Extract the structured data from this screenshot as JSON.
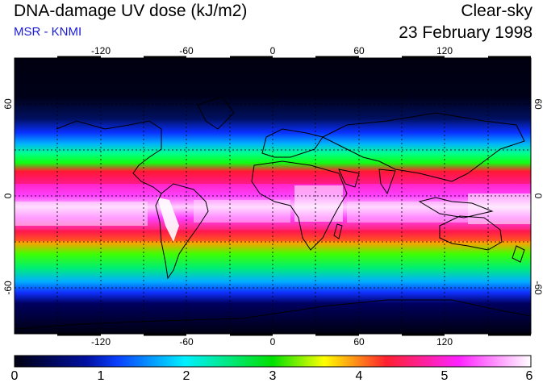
{
  "header": {
    "title": "DNA-damage UV dose (kJ/m2)",
    "source": "MSR - KNMI",
    "condition": "Clear-sky",
    "date": "23 February 1998"
  },
  "map": {
    "lon_ticks": [
      "-120",
      "-60",
      "0",
      "60",
      "120"
    ],
    "lat_ticks_left": [
      "60",
      "0",
      "-60"
    ],
    "lat_ticks_right": [
      "60",
      "0",
      "-60"
    ]
  },
  "colorbar": {
    "ticks": [
      "0",
      "1",
      "2",
      "3",
      "4",
      "5",
      "6"
    ],
    "colors": [
      "#000010",
      "#0a2aff",
      "#00e6ff",
      "#00e000",
      "#ffff00",
      "#ff1a40",
      "#ff22ff",
      "#ffffff"
    ]
  }
}
